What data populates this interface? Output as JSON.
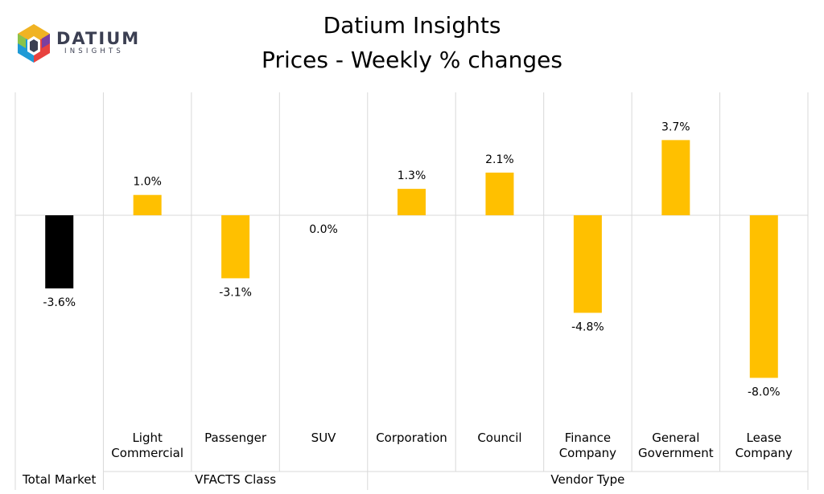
{
  "header": {
    "title": "Datium Insights",
    "subtitle": "Prices - Weekly % changes"
  },
  "logo": {
    "word": "DATIUM",
    "sub": "INSIGHTS"
  },
  "colors": {
    "total": "#000000",
    "segment": "#ffc000",
    "grid": "#d9d9d9"
  },
  "chart_data": {
    "type": "bar",
    "title": "Prices - Weekly % changes",
    "categories": [
      "",
      "Light Commercial",
      "Passenger",
      "SUV",
      "Corporation",
      "Council",
      "Finance Company",
      "General Government",
      "Lease Company"
    ],
    "category_lines": [
      [
        "Total Market"
      ],
      [
        "Light",
        "Commercial"
      ],
      [
        "Passenger"
      ],
      [
        "SUV"
      ],
      [
        "Corporation"
      ],
      [
        "Council"
      ],
      [
        "Finance",
        "Company"
      ],
      [
        "General",
        "Government"
      ],
      [
        "Lease",
        "Company"
      ]
    ],
    "groups": [
      {
        "label": "Total Market",
        "start": 0,
        "end": 0
      },
      {
        "label": "VFACTS Class",
        "start": 1,
        "end": 3
      },
      {
        "label": "Vendor Type",
        "start": 4,
        "end": 8
      }
    ],
    "values": [
      -3.6,
      1.0,
      -3.1,
      0.0,
      1.3,
      2.1,
      -4.8,
      3.7,
      -8.0
    ],
    "value_labels": [
      "-3.6%",
      "1.0%",
      "-3.1%",
      "0.0%",
      "1.3%",
      "2.1%",
      "-4.8%",
      "3.7%",
      "-8.0%"
    ],
    "ylim": [
      -10,
      6
    ],
    "grid": false,
    "legend": "none"
  }
}
